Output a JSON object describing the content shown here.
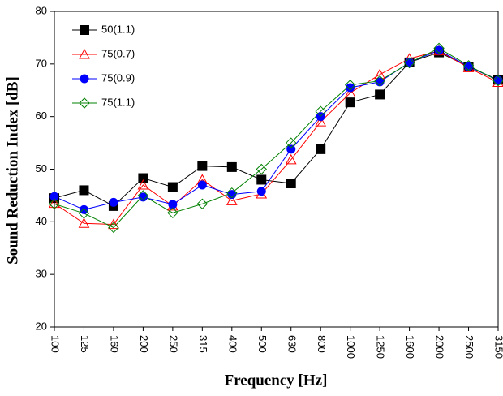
{
  "chart_data": {
    "type": "line",
    "xlabel": "Frequency [Hz]",
    "ylabel": "Sound Reduction Index [dB]",
    "categories": [
      "100",
      "125",
      "160",
      "200",
      "250",
      "315",
      "400",
      "500",
      "630",
      "800",
      "1000",
      "1250",
      "1600",
      "2000",
      "2500",
      "3150"
    ],
    "series": [
      {
        "name": "50(1.1)",
        "color": "#000000",
        "marker": "square",
        "filled": true,
        "values": [
          44.5,
          46,
          43,
          48.3,
          46.6,
          50.6,
          50.4,
          48,
          47.3,
          53.8,
          62.7,
          64.2,
          70.3,
          72.2,
          69.5,
          67
        ]
      },
      {
        "name": "75(0.7)",
        "color": "#ff0000",
        "marker": "triangle",
        "filled": false,
        "values": [
          43.5,
          39.7,
          39.5,
          47,
          43,
          48,
          44,
          45.3,
          51.8,
          59,
          64.5,
          68,
          71,
          72.5,
          69.3,
          66.5
        ]
      },
      {
        "name": "75(0.9)",
        "color": "#0000ff",
        "marker": "circle",
        "filled": true,
        "values": [
          44.8,
          42.3,
          43.7,
          44.7,
          43.3,
          47,
          45.2,
          45.8,
          53.8,
          60,
          65.5,
          66.6,
          70.3,
          72.6,
          69.5,
          66.9
        ]
      },
      {
        "name": "75(1.1)",
        "color": "#008000",
        "marker": "diamond",
        "filled": false,
        "values": [
          43.4,
          41.6,
          38.9,
          45,
          41.7,
          43.4,
          45.5,
          50,
          55,
          61,
          66,
          66.8,
          70.2,
          73,
          69.7,
          66.8
        ]
      }
    ],
    "ylim": [
      20,
      80
    ],
    "yticks": [
      20,
      30,
      40,
      50,
      60,
      70,
      80
    ],
    "grid": false,
    "legend": "upper left"
  }
}
